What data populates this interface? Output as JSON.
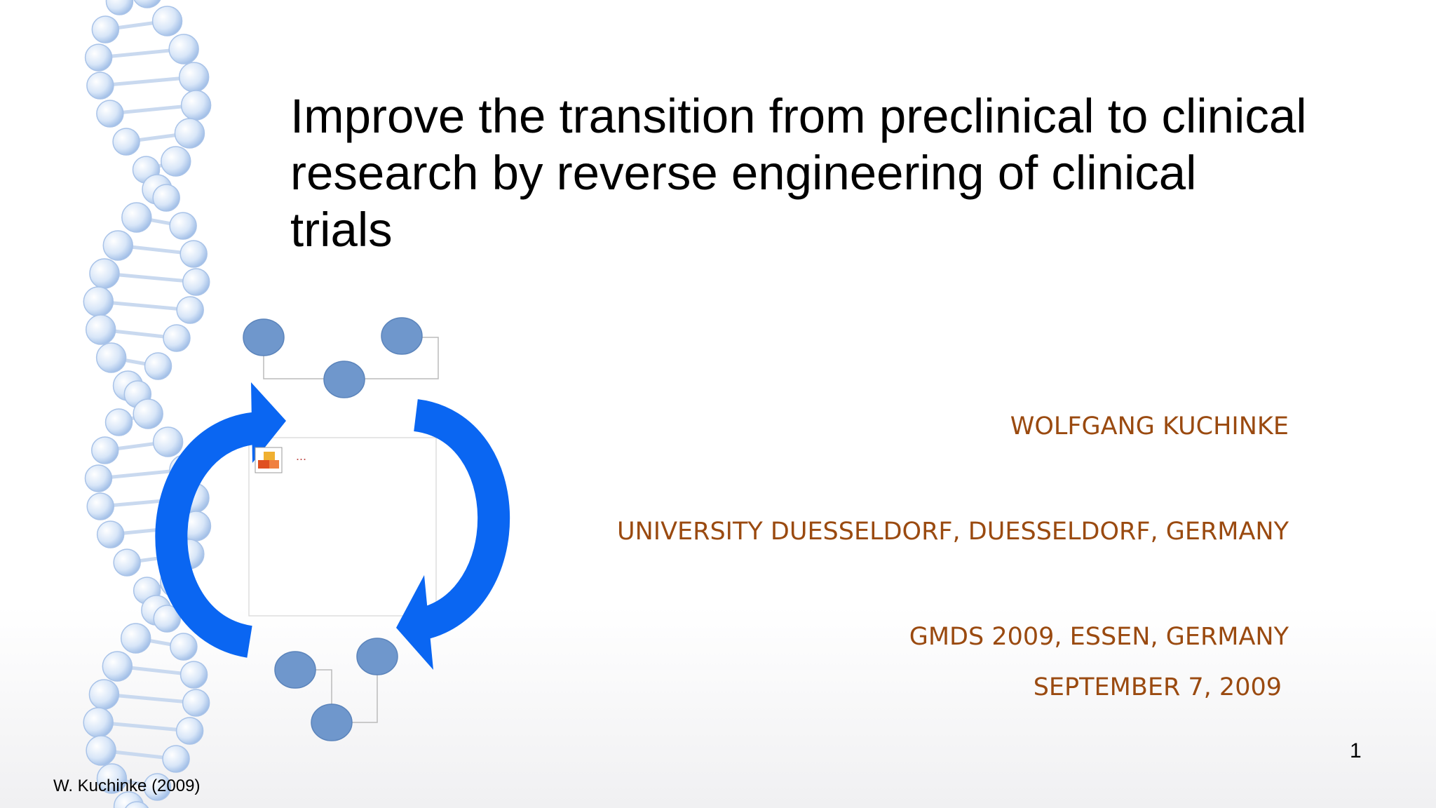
{
  "slide": {
    "title": "Improve the transition from preclinical to clinical research by reverse engineering of clinical trials",
    "diagram_placeholder": "...",
    "author": "WOLFGANG KUCHINKE",
    "affiliation": "UNIVERSITY DUESSELDORF, DUESSELDORF, GERMANY",
    "event": "GMDS 2009, ESSEN, GERMANY",
    "date": "SEPTEMBER 7, 2009",
    "footer": "W. Kuchinke (2009)",
    "page_number": "1"
  }
}
